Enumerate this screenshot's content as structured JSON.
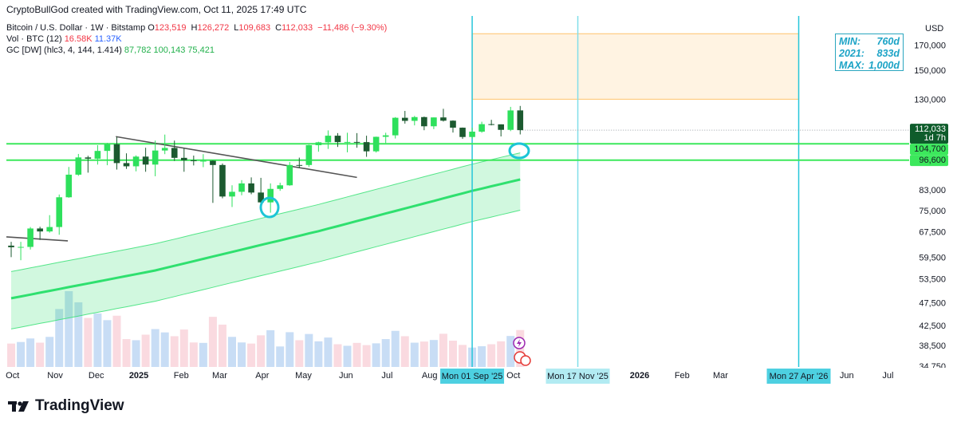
{
  "chart_data": {
    "type": "candlestick",
    "header": "CryptoBullGod created with TradingView.com, Oct 11, 2025 17:49 UTC",
    "legend": {
      "symbol": "Bitcoin / U.S. Dollar · 1W · Bitstamp",
      "ohlc": [
        [
          "O",
          "123,519"
        ],
        [
          "H",
          "126,272"
        ],
        [
          "L",
          "109,683"
        ],
        [
          "C",
          "112,033"
        ]
      ],
      "change": "−11,486 (−9.30%)",
      "volume": {
        "name": "Vol · BTC (12)",
        "values": [
          "16.58K",
          "11.37K"
        ]
      },
      "gc": {
        "name": "GC [DW] (hlc3, 4, 144, 1.414)",
        "values": [
          "87,782",
          "100,143",
          "75,421"
        ]
      }
    },
    "currency": "USD",
    "info_box": [
      [
        "MIN:",
        "760d"
      ],
      [
        "2021:",
        "833d"
      ],
      [
        "MAX:",
        "1,000d"
      ]
    ],
    "log_scale": true,
    "grid": false,
    "up_color": "#2ee05c",
    "down_color": "#1c5a30",
    "xlim": [
      -0.5,
      93.5
    ],
    "ylim": [
      34750,
      197000
    ],
    "xticks": [
      {
        "value": 0.14,
        "label": "Oct"
      },
      {
        "value": 4.57,
        "label": "Nov"
      },
      {
        "value": 8.86,
        "label": "Dec"
      },
      {
        "value": 13.29,
        "label": "2025"
      },
      {
        "value": 17.71,
        "label": "Feb"
      },
      {
        "value": 21.71,
        "label": "Mar"
      },
      {
        "value": 26.14,
        "label": "Apr"
      },
      {
        "value": 30.43,
        "label": "May"
      },
      {
        "value": 34.86,
        "label": "Jun"
      },
      {
        "value": 39.14,
        "label": "Jul"
      },
      {
        "value": 43.57,
        "label": "Aug"
      },
      {
        "value": 52.29,
        "label": "Oct"
      },
      {
        "value": 65.43,
        "label": "2026"
      },
      {
        "value": 69.86,
        "label": "Feb"
      },
      {
        "value": 73.86,
        "label": "Mar"
      },
      {
        "value": 87,
        "label": "Jun"
      },
      {
        "value": 91.29,
        "label": "Jul"
      }
    ],
    "yticks": [
      {
        "value": 170000,
        "label": "170,000"
      },
      {
        "value": 150000,
        "label": "150,000"
      },
      {
        "value": 130000,
        "label": "130,000"
      },
      {
        "value": 83000,
        "label": "83,000"
      },
      {
        "value": 75000,
        "label": "75,000"
      },
      {
        "value": 67500,
        "label": "67,500"
      },
      {
        "value": 59500,
        "label": "59,500"
      },
      {
        "value": 53500,
        "label": "53,500"
      },
      {
        "value": 47500,
        "label": "47,500"
      },
      {
        "value": 42500,
        "label": "42,500"
      },
      {
        "value": 38500,
        "label": "38,500"
      },
      {
        "value": 34750,
        "label": "34,750"
      }
    ],
    "candles": {
      "open": [
        63300,
        62800,
        62900,
        68900,
        67900,
        69400,
        80400,
        89900,
        97900,
        97300,
        101100,
        104500,
        95200,
        93700,
        98300,
        94500,
        101300,
        102600,
        97700,
        96500,
        96100,
        96300,
        94300,
        80700,
        82600,
        86100,
        82300,
        78400,
        83800,
        85300,
        94300,
        94300,
        104000,
        105500,
        109000,
        105600,
        105700,
        105600,
        100900,
        108400,
        109200,
        119100,
        117300,
        119500,
        114200,
        119300,
        117400,
        113400,
        108300,
        111200,
        115400,
        115300,
        112200,
        123519
      ],
      "high": [
        64500,
        64500,
        69400,
        69500,
        73600,
        81500,
        93400,
        99600,
        98700,
        104000,
        105200,
        108300,
        99900,
        98900,
        102700,
        106400,
        109600,
        106400,
        102500,
        98800,
        99500,
        96500,
        95000,
        85300,
        87500,
        88700,
        88500,
        86100,
        86400,
        95700,
        97800,
        104200,
        105800,
        111900,
        110400,
        110600,
        110400,
        109000,
        108500,
        110600,
        119500,
        123200,
        120200,
        119800,
        119300,
        124500,
        117600,
        113500,
        113400,
        116800,
        117900,
        115300,
        125700,
        126272
      ],
      "low": [
        59800,
        58900,
        62100,
        65100,
        67500,
        66800,
        80200,
        89400,
        90800,
        94500,
        94200,
        92200,
        92500,
        91400,
        91200,
        89200,
        99500,
        96200,
        91200,
        94100,
        93300,
        78200,
        80000,
        76600,
        81200,
        81600,
        77100,
        74500,
        83000,
        85100,
        92800,
        93400,
        100700,
        102100,
        103100,
        100400,
        102700,
        98200,
        100300,
        105100,
        107500,
        115700,
        114700,
        112000,
        112600,
        116900,
        110700,
        107300,
        107300,
        110600,
        114700,
        108600,
        111500,
        109683
      ],
      "close": [
        62800,
        62900,
        68900,
        67900,
        69400,
        80400,
        89900,
        97900,
        97300,
        101100,
        104500,
        95200,
        93700,
        98300,
        94500,
        101300,
        102600,
        97700,
        96500,
        96100,
        96300,
        94300,
        80700,
        82600,
        86100,
        82300,
        78400,
        83800,
        85300,
        94300,
        94200,
        104000,
        105500,
        109000,
        105600,
        105700,
        105600,
        100900,
        108400,
        109200,
        119100,
        117300,
        119500,
        114200,
        119300,
        117400,
        113400,
        108300,
        111200,
        115400,
        115300,
        112200,
        123500,
        112033
      ]
    },
    "volume": {
      "values": [
        10500,
        11200,
        12800,
        10900,
        13500,
        26000,
        34000,
        29000,
        22000,
        24000,
        21000,
        23000,
        12500,
        12000,
        14500,
        17000,
        15500,
        13800,
        16800,
        11000,
        10800,
        22500,
        19000,
        13500,
        11000,
        10500,
        14200,
        16500,
        9200,
        15600,
        12000,
        14800,
        11500,
        13200,
        10200,
        9500,
        10800,
        9800,
        10600,
        12500,
        16200,
        13800,
        10900,
        11400,
        12100,
        14900,
        11800,
        9900,
        8700,
        9300,
        10200,
        11500,
        13900,
        16580
      ]
    },
    "gc": {
      "color": "#2fe06f",
      "mid": [
        48800,
        49250,
        49700,
        50160,
        50620,
        51090,
        51560,
        52030,
        52510,
        53000,
        53480,
        53980,
        54470,
        54980,
        55480,
        56000,
        56640,
        57290,
        57950,
        58620,
        59290,
        59970,
        60660,
        61360,
        62060,
        62780,
        63500,
        64230,
        64960,
        65710,
        66460,
        67230,
        68000,
        68850,
        69710,
        70590,
        71480,
        72370,
        73280,
        74200,
        75130,
        76070,
        77020,
        77990,
        78960,
        79950,
        80950,
        81970,
        83000,
        83930,
        84880,
        85840,
        86810,
        87782
      ],
      "upper": [
        55680,
        56190,
        56710,
        57230,
        57760,
        58290,
        58830,
        59370,
        59910,
        60470,
        61020,
        61590,
        62150,
        62730,
        63300,
        63900,
        64630,
        65370,
        66120,
        66890,
        67650,
        68420,
        69210,
        70010,
        70810,
        71630,
        72450,
        73290,
        74120,
        74980,
        75830,
        76710,
        77590,
        78560,
        79540,
        80540,
        81560,
        82570,
        83610,
        84660,
        85720,
        86800,
        87880,
        88990,
        90090,
        91220,
        92360,
        93530,
        94700,
        95760,
        96850,
        97940,
        99050,
        100143
      ],
      "lower": [
        41920,
        42310,
        42690,
        43090,
        43480,
        43890,
        44290,
        44690,
        45110,
        45530,
        45940,
        46370,
        46790,
        47230,
        47660,
        48100,
        48650,
        49210,
        49780,
        50350,
        50930,
        51510,
        52110,
        52710,
        53310,
        53930,
        54550,
        55170,
        55800,
        56450,
        57090,
        57750,
        58410,
        59140,
        59880,
        60640,
        61400,
        62170,
        62950,
        63740,
        64540,
        65340,
        66160,
        66990,
        67830,
        68680,
        69540,
        70410,
        71300,
        72100,
        72910,
        73740,
        74570,
        75421
      ]
    },
    "trendlines": [
      {
        "x": [
          -0.5,
          5.9
        ],
        "y": [
          66100,
          64800
        ]
      },
      {
        "x": [
          10.9,
          36
        ],
        "y": [
          108500,
          88700
        ]
      }
    ],
    "projection": {
      "x": [
        48,
        82
      ],
      "y": [
        130500,
        180400
      ]
    },
    "levels": [
      {
        "value": 104700,
        "label": "104,700"
      },
      {
        "value": 96600,
        "label": "96,600"
      }
    ],
    "level_color": "#3ce85c",
    "price_label": {
      "label": "112,033",
      "countdown": "1d 7h"
    },
    "vlines": [
      {
        "value": 48,
        "label": "Mon 01 Sep '25",
        "color": "#26c6da",
        "fill": "#4dd0e1"
      },
      {
        "value": 59,
        "label": "Mon 17 Nov '25",
        "color": "#80deea",
        "fill": "#b2ebf2"
      },
      {
        "value": 82,
        "label": "Mon 27 Apr '26",
        "color": "#26c6da",
        "fill": "#4dd0e1"
      }
    ],
    "brand": "TradingView"
  }
}
